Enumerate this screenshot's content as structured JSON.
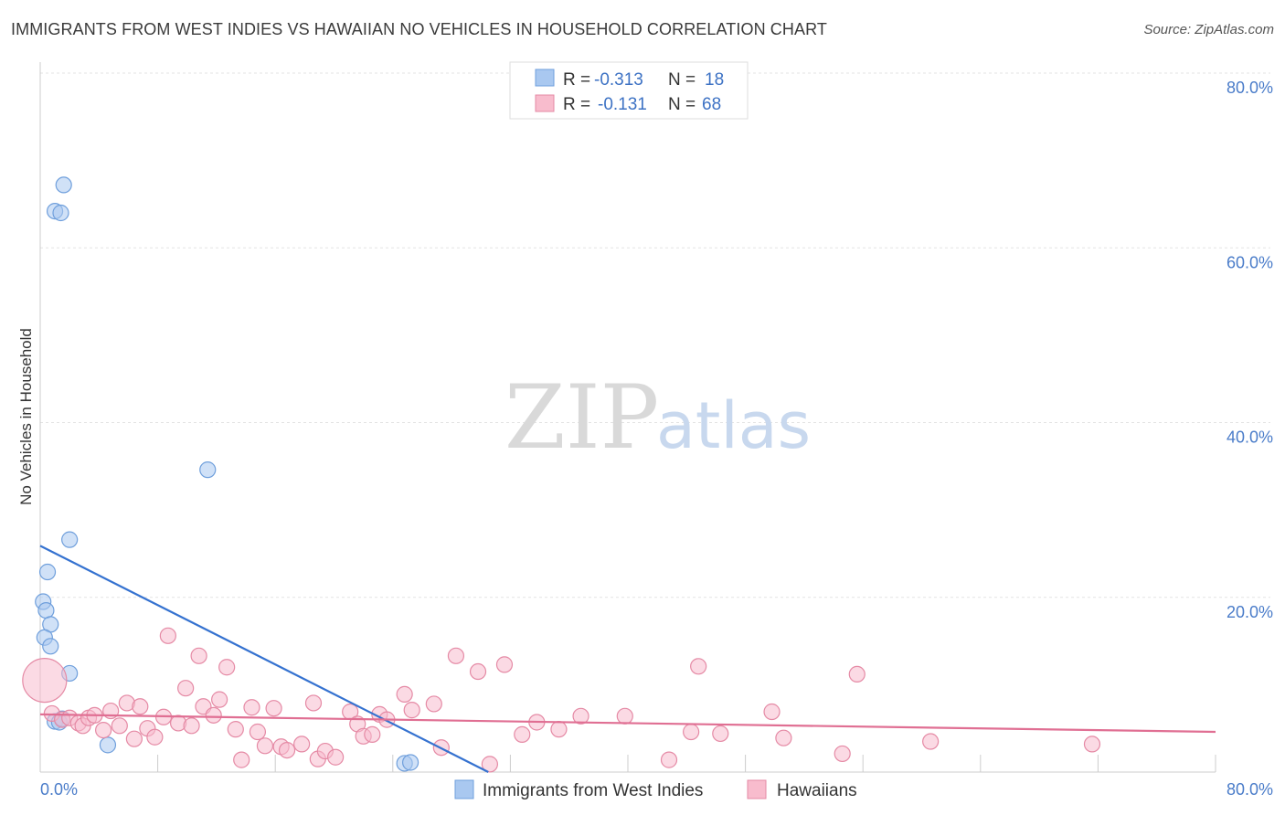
{
  "title": "IMMIGRANTS FROM WEST INDIES VS HAWAIIAN NO VEHICLES IN HOUSEHOLD CORRELATION CHART",
  "source": "Source: ZipAtlas.com",
  "watermark": {
    "zip": "ZIP",
    "atlas": "atlas"
  },
  "legend_top": {
    "rows": [
      {
        "r_label": "R =",
        "r_value": "-0.313",
        "n_label": "N =",
        "n_value": "18",
        "color": "#a9c8f0",
        "stroke": "#6f9fdc"
      },
      {
        "r_label": "R =",
        "r_value": "-0.131",
        "n_label": "N =",
        "n_value": "68",
        "color": "#f8bccd",
        "stroke": "#e58aa5"
      }
    ]
  },
  "legend_bottom": [
    {
      "label": "Immigrants from West Indies",
      "color": "#a9c8f0",
      "stroke": "#6f9fdc"
    },
    {
      "label": "Hawaiians",
      "color": "#f8bccd",
      "stroke": "#e58aa5"
    }
  ],
  "chart_data": {
    "type": "scatter",
    "title": "IMMIGRANTS FROM WEST INDIES VS HAWAIIAN NO VEHICLES IN HOUSEHOLD CORRELATION CHART",
    "xlabel": "",
    "ylabel": "No Vehicles in Household",
    "xlim": [
      0,
      80
    ],
    "ylim": [
      0,
      80
    ],
    "x_tick_labels": [
      "0.0%",
      "80.0%"
    ],
    "y_ticks": [
      20,
      40,
      60,
      80
    ],
    "y_tick_labels": [
      "20.0%",
      "40.0%",
      "60.0%",
      "80.0%"
    ],
    "grid": true,
    "legend_position": "top-center",
    "series": [
      {
        "name": "Immigrants from West Indies",
        "color": "#a9c8f0",
        "stroke": "#6f9fdc",
        "line_color": "#3572d0",
        "trend": {
          "x": [
            0,
            30.5
          ],
          "y": [
            25.9,
            0
          ]
        },
        "points": [
          {
            "x": 1.6,
            "y": 67.2
          },
          {
            "x": 1.0,
            "y": 64.2
          },
          {
            "x": 1.4,
            "y": 64.0
          },
          {
            "x": 11.4,
            "y": 34.6
          },
          {
            "x": 2.0,
            "y": 26.6
          },
          {
            "x": 0.5,
            "y": 22.9
          },
          {
            "x": 0.2,
            "y": 19.5
          },
          {
            "x": 0.4,
            "y": 18.5
          },
          {
            "x": 0.7,
            "y": 16.9
          },
          {
            "x": 0.3,
            "y": 15.4
          },
          {
            "x": 0.7,
            "y": 14.4
          },
          {
            "x": 2.0,
            "y": 11.3
          },
          {
            "x": 1.0,
            "y": 5.8
          },
          {
            "x": 1.3,
            "y": 5.7
          },
          {
            "x": 1.5,
            "y": 6.1
          },
          {
            "x": 4.6,
            "y": 3.1
          },
          {
            "x": 24.8,
            "y": 1.0
          },
          {
            "x": 25.2,
            "y": 1.1
          }
        ]
      },
      {
        "name": "Hawaiians",
        "color": "#f8bccd",
        "stroke": "#e58aa5",
        "line_color": "#e06f93",
        "trend": {
          "x": [
            0,
            80
          ],
          "y": [
            6.6,
            4.6
          ]
        },
        "points": [
          {
            "x": 0.3,
            "y": 10.5,
            "big": true
          },
          {
            "x": 0.8,
            "y": 6.7
          },
          {
            "x": 1.5,
            "y": 6.0
          },
          {
            "x": 2.0,
            "y": 6.2
          },
          {
            "x": 2.6,
            "y": 5.6
          },
          {
            "x": 2.9,
            "y": 5.3
          },
          {
            "x": 3.3,
            "y": 6.2
          },
          {
            "x": 3.7,
            "y": 6.5
          },
          {
            "x": 4.3,
            "y": 4.8
          },
          {
            "x": 4.8,
            "y": 7.0
          },
          {
            "x": 5.4,
            "y": 5.3
          },
          {
            "x": 5.9,
            "y": 7.9
          },
          {
            "x": 6.4,
            "y": 3.8
          },
          {
            "x": 6.8,
            "y": 7.5
          },
          {
            "x": 7.3,
            "y": 5.0
          },
          {
            "x": 7.8,
            "y": 4.0
          },
          {
            "x": 8.4,
            "y": 6.3
          },
          {
            "x": 8.7,
            "y": 15.6
          },
          {
            "x": 9.4,
            "y": 5.6
          },
          {
            "x": 9.9,
            "y": 9.6
          },
          {
            "x": 10.3,
            "y": 5.3
          },
          {
            "x": 10.8,
            "y": 13.3
          },
          {
            "x": 11.1,
            "y": 7.5
          },
          {
            "x": 11.8,
            "y": 6.5
          },
          {
            "x": 12.2,
            "y": 8.3
          },
          {
            "x": 12.7,
            "y": 12.0
          },
          {
            "x": 13.3,
            "y": 4.9
          },
          {
            "x": 13.7,
            "y": 1.4
          },
          {
            "x": 14.4,
            "y": 7.4
          },
          {
            "x": 14.8,
            "y": 4.6
          },
          {
            "x": 15.3,
            "y": 3.0
          },
          {
            "x": 15.9,
            "y": 7.3
          },
          {
            "x": 16.4,
            "y": 2.9
          },
          {
            "x": 16.8,
            "y": 2.5
          },
          {
            "x": 17.8,
            "y": 3.2
          },
          {
            "x": 18.6,
            "y": 7.9
          },
          {
            "x": 18.9,
            "y": 1.5
          },
          {
            "x": 19.4,
            "y": 2.4
          },
          {
            "x": 20.1,
            "y": 1.7
          },
          {
            "x": 21.1,
            "y": 6.9
          },
          {
            "x": 21.6,
            "y": 5.5
          },
          {
            "x": 22.0,
            "y": 4.1
          },
          {
            "x": 22.6,
            "y": 4.3
          },
          {
            "x": 23.1,
            "y": 6.6
          },
          {
            "x": 23.6,
            "y": 6.0
          },
          {
            "x": 24.8,
            "y": 8.9
          },
          {
            "x": 25.3,
            "y": 7.1
          },
          {
            "x": 26.8,
            "y": 7.8
          },
          {
            "x": 27.3,
            "y": 2.8
          },
          {
            "x": 28.3,
            "y": 13.3
          },
          {
            "x": 29.8,
            "y": 11.5
          },
          {
            "x": 30.6,
            "y": 0.9
          },
          {
            "x": 31.6,
            "y": 12.3
          },
          {
            "x": 32.8,
            "y": 4.3
          },
          {
            "x": 33.8,
            "y": 5.7
          },
          {
            "x": 35.3,
            "y": 4.9
          },
          {
            "x": 36.8,
            "y": 6.4
          },
          {
            "x": 39.8,
            "y": 6.4
          },
          {
            "x": 42.8,
            "y": 1.4
          },
          {
            "x": 44.3,
            "y": 4.6
          },
          {
            "x": 44.8,
            "y": 12.1
          },
          {
            "x": 46.3,
            "y": 4.4
          },
          {
            "x": 49.8,
            "y": 6.9
          },
          {
            "x": 50.6,
            "y": 3.9
          },
          {
            "x": 54.6,
            "y": 2.1
          },
          {
            "x": 55.6,
            "y": 11.2
          },
          {
            "x": 60.6,
            "y": 3.5
          },
          {
            "x": 71.6,
            "y": 3.2
          }
        ]
      }
    ]
  }
}
